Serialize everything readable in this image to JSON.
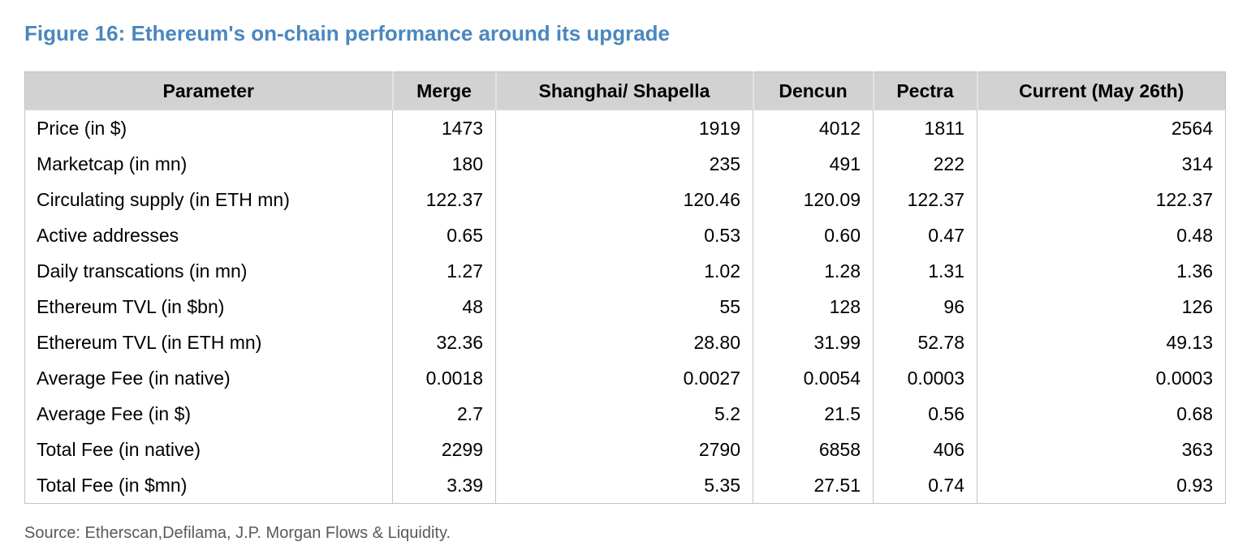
{
  "figure": {
    "title": "Figure 16: Ethereum's on-chain performance around its upgrade"
  },
  "table": {
    "columns": [
      "Parameter",
      "Merge",
      "Shanghai/ Shapella",
      "Dencun",
      "Pectra",
      "Current (May 26th)"
    ],
    "rows": [
      [
        "Price (in $)",
        "1473",
        "1919",
        "4012",
        "1811",
        "2564"
      ],
      [
        "Marketcap (in mn)",
        "180",
        "235",
        "491",
        "222",
        "314"
      ],
      [
        "Circulating supply (in ETH mn)",
        "122.37",
        "120.46",
        "120.09",
        "122.37",
        "122.37"
      ],
      [
        "Active addresses",
        "0.65",
        "0.53",
        "0.60",
        "0.47",
        "0.48"
      ],
      [
        "Daily transcations (in mn)",
        "1.27",
        "1.02",
        "1.28",
        "1.31",
        "1.36"
      ],
      [
        "Ethereum TVL (in $bn)",
        "48",
        "55",
        "128",
        "96",
        "126"
      ],
      [
        "Ethereum TVL (in ETH mn)",
        "32.36",
        "28.80",
        "31.99",
        "52.78",
        "49.13"
      ],
      [
        "Average Fee (in native)",
        "0.0018",
        "0.0027",
        "0.0054",
        "0.0003",
        "0.0003"
      ],
      [
        "Average Fee (in $)",
        "2.7",
        "5.2",
        "21.5",
        "0.56",
        "0.68"
      ],
      [
        "Total Fee (in native)",
        "2299",
        "2790",
        "6858",
        "406",
        "363"
      ],
      [
        "Total Fee (in $mn)",
        "3.39",
        "5.35",
        "27.51",
        "0.74",
        "0.93"
      ]
    ]
  },
  "source": "Source: Etherscan,Defilama, J.P. Morgan Flows & Liquidity.",
  "colors": {
    "title": "#4a87be",
    "header_bg": "#d2d2d2",
    "body_text": "#000000",
    "source_text": "#58595b",
    "grid_line": "#c3c3c3"
  }
}
